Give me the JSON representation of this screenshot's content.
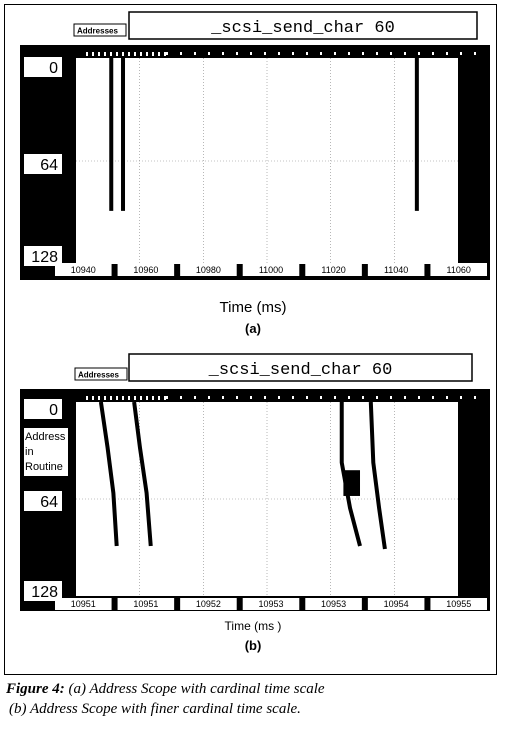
{
  "chart_data": [
    {
      "type": "line",
      "panel_label": "(a)",
      "tab_label": "Addresses",
      "routine_title": "_scsi_send_char 60",
      "xlabel": "Time  (ms)",
      "y_axis_side_label": [],
      "y_ticks": [
        "0",
        "64",
        "128"
      ],
      "ylim": [
        0,
        128
      ],
      "y_inverted": true,
      "x_ticks": [
        "10940",
        "10960",
        "10980",
        "11000",
        "11020",
        "11040",
        "11060"
      ],
      "xlim": [
        10935,
        11065
      ],
      "grid": true,
      "series": [
        {
          "x": [
            10947,
            10947
          ],
          "y": [
            0,
            95
          ]
        },
        {
          "x": [
            10951,
            10951
          ],
          "y": [
            0,
            95
          ]
        },
        {
          "x": [
            11051,
            11051
          ],
          "y": [
            0,
            95
          ]
        }
      ]
    },
    {
      "type": "line",
      "panel_label": "(b)",
      "tab_label": "Addresses",
      "routine_title": "_scsi_send_char 60",
      "xlabel": "Time (ms )",
      "y_axis_side_label": [
        "Address",
        "in",
        "Routine"
      ],
      "y_ticks": [
        "0",
        "64",
        "128"
      ],
      "ylim": [
        0,
        128
      ],
      "y_inverted": true,
      "x_ticks": [
        "10951",
        "10951",
        "10952",
        "10953",
        "10953",
        "10954",
        "10955"
      ],
      "xlim": [
        10950.7,
        10955.3
      ],
      "grid": true,
      "series": [
        {
          "x": [
            10951.0,
            10951.08,
            10951.15,
            10951.19
          ],
          "y": [
            0,
            30,
            60,
            95
          ]
        },
        {
          "x": [
            10951.4,
            10951.47,
            10951.55,
            10951.6
          ],
          "y": [
            0,
            30,
            60,
            95
          ]
        },
        {
          "x": [
            10953.9,
            10953.9,
            10954.0,
            10954.12
          ],
          "y": [
            0,
            40,
            70,
            95
          ]
        },
        {
          "x": [
            10954.25,
            10954.28,
            10954.35,
            10954.42
          ],
          "y": [
            0,
            40,
            70,
            97
          ]
        }
      ],
      "blocks": [
        {
          "x0": 10953.92,
          "x1": 10954.12,
          "y0": 45,
          "y1": 62
        }
      ]
    }
  ],
  "caption": {
    "figure_label": "Figure 4:",
    "line1": " (a) Address Scope with cardinal time scale",
    "line2": "(b) Address Scope with finer cardinal time scale."
  }
}
